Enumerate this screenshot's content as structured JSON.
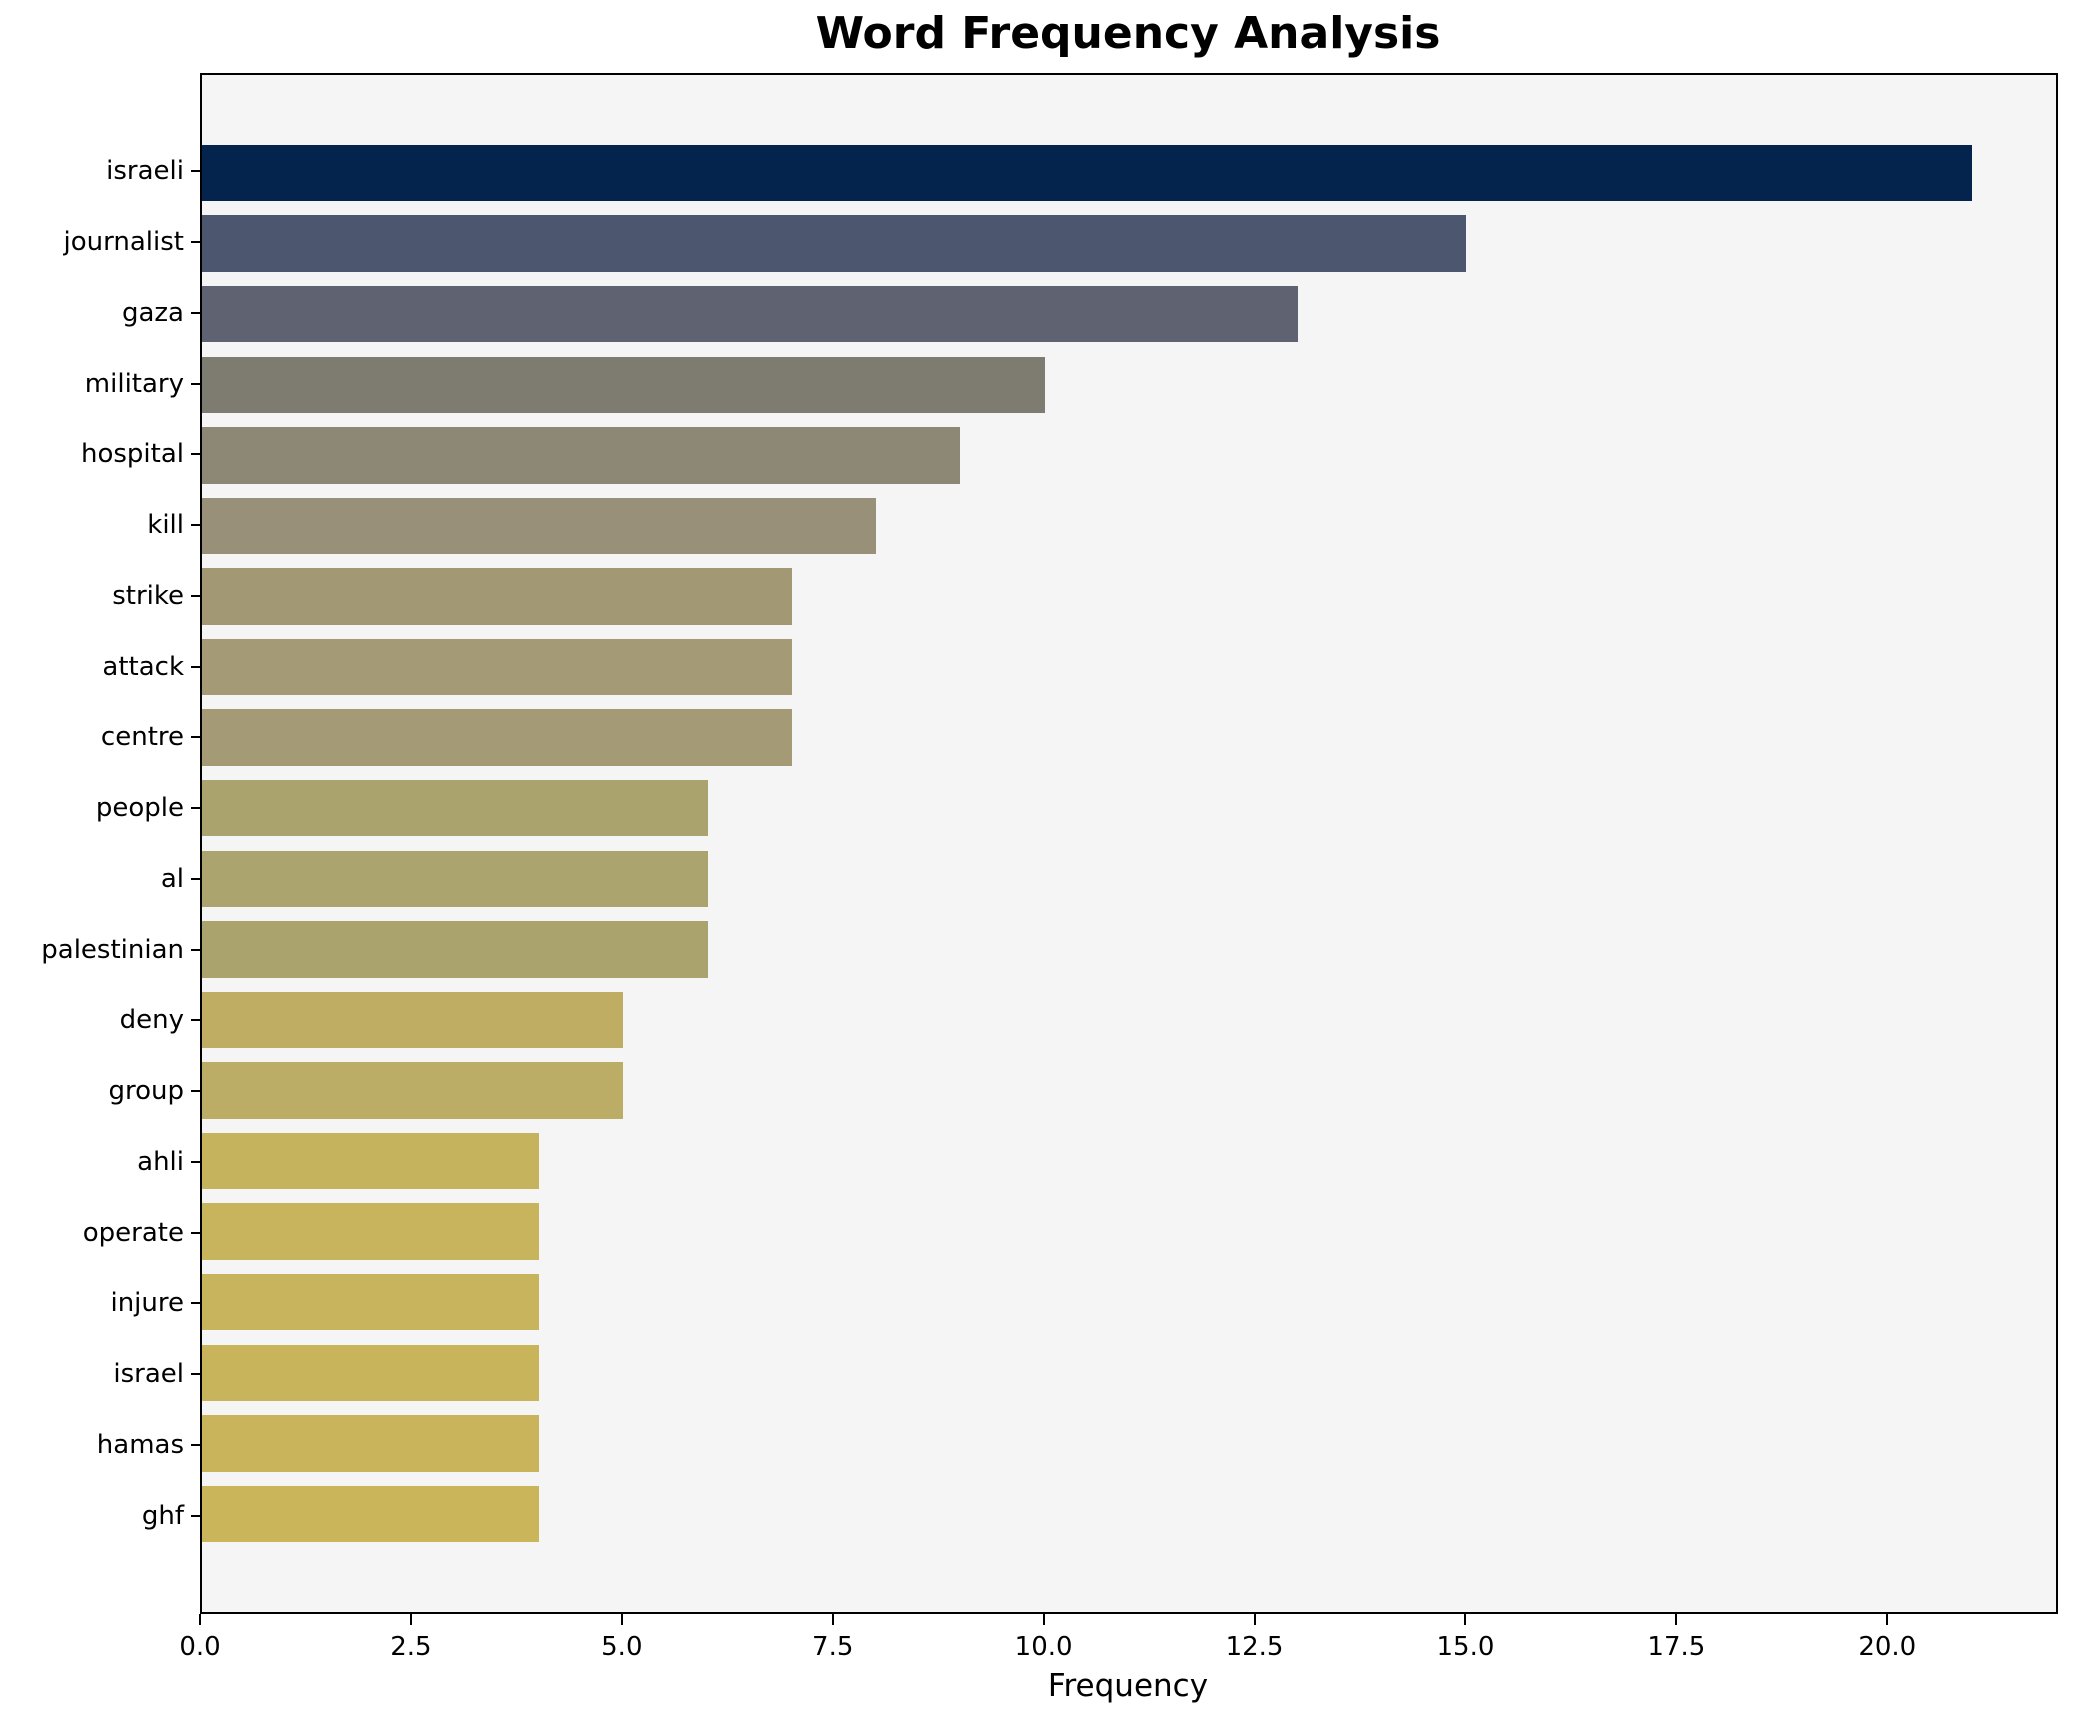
{
  "chart_data": {
    "type": "bar",
    "orientation": "horizontal",
    "title": "Word Frequency Analysis",
    "xlabel": "Frequency",
    "ylabel": "",
    "categories": [
      "israeli",
      "journalist",
      "gaza",
      "military",
      "hospital",
      "kill",
      "strike",
      "attack",
      "centre",
      "people",
      "al",
      "palestinian",
      "deny",
      "group",
      "ahli",
      "operate",
      "injure",
      "israel",
      "hamas",
      "ghf"
    ],
    "values": [
      21,
      15,
      13,
      10,
      9,
      8,
      7,
      7,
      7,
      6,
      6,
      6,
      5,
      5,
      4,
      4,
      4,
      4,
      4,
      4
    ],
    "bar_colors": [
      "#04234d",
      "#4d566f",
      "#5f6270",
      "#7e7c71",
      "#8d8776",
      "#989078",
      "#a29974",
      "#a49b76",
      "#a49b76",
      "#aaa36e",
      "#aba46f",
      "#aaa36e",
      "#bead63",
      "#bbad66",
      "#c6b35e",
      "#c7b45d",
      "#c8b45c",
      "#c8b45b",
      "#c9b45b",
      "#cab55a"
    ],
    "xlim": [
      0,
      22
    ],
    "xticks": [
      0,
      2.5,
      5,
      7.5,
      10,
      12.5,
      15,
      17.5,
      20
    ],
    "xtick_labels": [
      "0.0",
      "2.5",
      "5.0",
      "7.5",
      "10.0",
      "12.5",
      "15.0",
      "17.5",
      "20.0"
    ],
    "grid": false,
    "legend": null,
    "plot_bg": "#f5f5f6",
    "figure_bg": "#ffffff",
    "spine_color": "#000000",
    "text_color": "#000000"
  }
}
